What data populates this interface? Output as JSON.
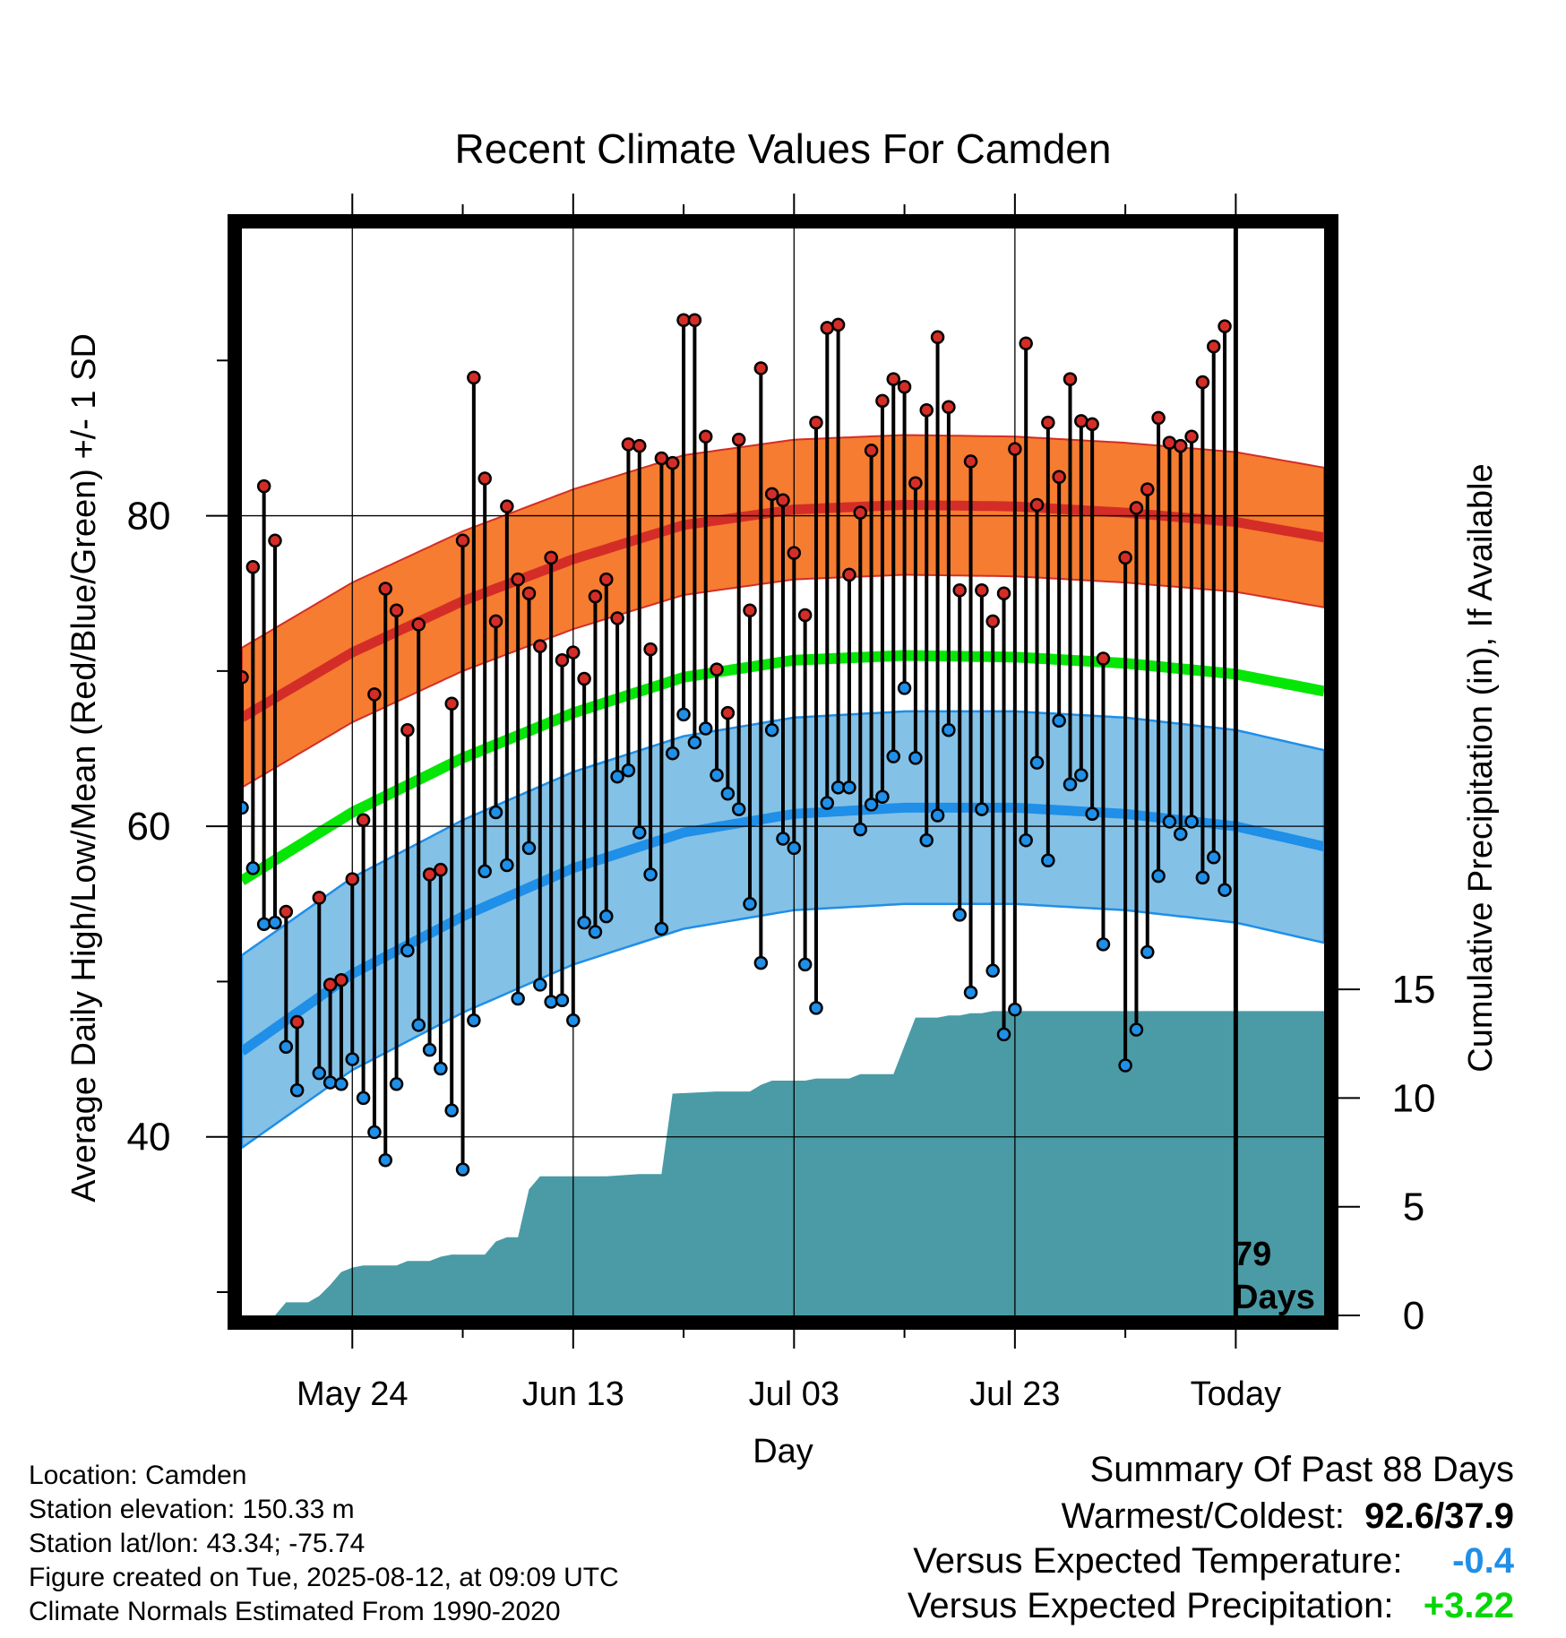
{
  "chart_data": {
    "type": "line",
    "title": "Recent Climate Values For Camden",
    "xlabel": "Day",
    "ylabel": "Average Daily High/Low/Mean (Red/Blue/Green) +/- 1 SD",
    "y2label": "Cumulative Precipitation (in), If Available",
    "xlim": [
      1,
      99
    ],
    "ylim": [
      28.5,
      98.5
    ],
    "y2lim": [
      0,
      50
    ],
    "x_tick_labels": [
      {
        "day": 11,
        "label": "May 24"
      },
      {
        "day": 31,
        "label": "Jun 13"
      },
      {
        "day": 51,
        "label": "Jul 03"
      },
      {
        "day": 71,
        "label": "Jul 23"
      },
      {
        "day": 91,
        "label": "Today"
      }
    ],
    "y_tick_labels": [
      40,
      60,
      80
    ],
    "y2_tick_labels": [
      0,
      5,
      10,
      15
    ],
    "today_marker": {
      "day": 91,
      "label_line1": "79",
      "label_line2": "Days"
    },
    "grid": true,
    "normals": {
      "day": [
        1,
        11,
        21,
        31,
        41,
        51,
        61,
        71,
        81,
        91,
        99
      ],
      "high_mean": [
        67,
        71.2,
        74.5,
        77.2,
        79.4,
        80.4,
        80.7,
        80.6,
        80.2,
        79.6,
        78.6
      ],
      "high_sd": 4.5,
      "low_mean": [
        45.5,
        50.5,
        54.2,
        57.3,
        59.6,
        60.8,
        61.2,
        61.2,
        60.8,
        60.0,
        58.7
      ],
      "low_sd": 6.2,
      "avg_mean": [
        56.5,
        60.9,
        64.4,
        67.3,
        69.6,
        70.7,
        71.0,
        70.9,
        70.5,
        69.8,
        68.7
      ],
      "colors": {
        "high": "#d42d27",
        "high_band": "#f57c30",
        "low": "#1f8fe8",
        "low_band": "#84c1e6",
        "avg": "#06e606"
      }
    },
    "daily_observations": [
      {
        "day": 1,
        "high": 69.6,
        "low": 61.2
      },
      {
        "day": 2,
        "high": 76.7,
        "low": 57.3
      },
      {
        "day": 3,
        "high": 81.9,
        "low": 53.7
      },
      {
        "day": 4,
        "high": 78.4,
        "low": 53.8
      },
      {
        "day": 5,
        "high": 54.5,
        "low": 45.8
      },
      {
        "day": 6,
        "high": 47.4,
        "low": 43.0
      },
      {
        "day": 8,
        "high": 55.4,
        "low": 44.1
      },
      {
        "day": 9,
        "high": 49.8,
        "low": 43.5
      },
      {
        "day": 10,
        "high": 50.1,
        "low": 43.4
      },
      {
        "day": 11,
        "high": 56.6,
        "low": 45.0
      },
      {
        "day": 12,
        "high": 60.4,
        "low": 42.5
      },
      {
        "day": 13,
        "high": 68.5,
        "low": 40.3
      },
      {
        "day": 14,
        "high": 75.3,
        "low": 38.5
      },
      {
        "day": 15,
        "high": 73.9,
        "low": 43.4
      },
      {
        "day": 16,
        "high": 66.2,
        "low": 52.0
      },
      {
        "day": 17,
        "high": 73.0,
        "low": 47.2
      },
      {
        "day": 18,
        "high": 56.9,
        "low": 45.6
      },
      {
        "day": 19,
        "high": 57.2,
        "low": 44.4
      },
      {
        "day": 20,
        "high": 67.9,
        "low": 41.7
      },
      {
        "day": 21,
        "high": 78.4,
        "low": 37.9
      },
      {
        "day": 22,
        "high": 88.9,
        "low": 47.5
      },
      {
        "day": 23,
        "high": 82.4,
        "low": 57.1
      },
      {
        "day": 24,
        "high": 73.2,
        "low": 60.9
      },
      {
        "day": 25,
        "high": 80.6,
        "low": 57.5
      },
      {
        "day": 26,
        "high": 75.9,
        "low": 48.9
      },
      {
        "day": 27,
        "high": 75.0,
        "low": 58.6
      },
      {
        "day": 28,
        "high": 71.6,
        "low": 49.8
      },
      {
        "day": 29,
        "high": 77.3,
        "low": 48.7
      },
      {
        "day": 30,
        "high": 70.7,
        "low": 48.8
      },
      {
        "day": 31,
        "high": 71.2,
        "low": 47.5
      },
      {
        "day": 32,
        "high": 69.5,
        "low": 53.8
      },
      {
        "day": 33,
        "high": 74.8,
        "low": 53.2
      },
      {
        "day": 34,
        "high": 75.9,
        "low": 54.2
      },
      {
        "day": 35,
        "high": 73.4,
        "low": 63.2
      },
      {
        "day": 36,
        "high": 84.6,
        "low": 63.6
      },
      {
        "day": 37,
        "high": 84.5,
        "low": 59.6
      },
      {
        "day": 38,
        "high": 71.4,
        "low": 56.9
      },
      {
        "day": 39,
        "high": 83.7,
        "low": 53.4
      },
      {
        "day": 40,
        "high": 83.4,
        "low": 64.7
      },
      {
        "day": 41,
        "high": 92.6,
        "low": 67.2
      },
      {
        "day": 42,
        "high": 92.6,
        "low": 65.4
      },
      {
        "day": 43,
        "high": 85.1,
        "low": 66.3
      },
      {
        "day": 44,
        "high": 70.1,
        "low": 63.3
      },
      {
        "day": 45,
        "high": 67.3,
        "low": 62.1
      },
      {
        "day": 46,
        "high": 84.9,
        "low": 61.1
      },
      {
        "day": 47,
        "high": 73.9,
        "low": 55.0
      },
      {
        "day": 48,
        "high": 89.5,
        "low": 51.2
      },
      {
        "day": 49,
        "high": 81.4,
        "low": 66.2
      },
      {
        "day": 50,
        "high": 81.0,
        "low": 59.2
      },
      {
        "day": 51,
        "high": 77.6,
        "low": 58.6
      },
      {
        "day": 52,
        "high": 73.6,
        "low": 51.1
      },
      {
        "day": 53,
        "high": 86.0,
        "low": 48.3
      },
      {
        "day": 54,
        "high": 92.1,
        "low": 61.5
      },
      {
        "day": 55,
        "high": 92.3,
        "low": 62.5
      },
      {
        "day": 56,
        "high": 76.2,
        "low": 62.5
      },
      {
        "day": 57,
        "high": 80.2,
        "low": 59.8
      },
      {
        "day": 58,
        "high": 84.2,
        "low": 61.4
      },
      {
        "day": 59,
        "high": 87.4,
        "low": 61.9
      },
      {
        "day": 60,
        "high": 88.8,
        "low": 64.5
      },
      {
        "day": 61,
        "high": 88.3,
        "low": 68.9
      },
      {
        "day": 62,
        "high": 82.1,
        "low": 64.4
      },
      {
        "day": 63,
        "high": 86.8,
        "low": 59.1
      },
      {
        "day": 64,
        "high": 91.5,
        "low": 60.7
      },
      {
        "day": 65,
        "high": 87.0,
        "low": 66.2
      },
      {
        "day": 66,
        "high": 75.2,
        "low": 54.3
      },
      {
        "day": 67,
        "high": 83.5,
        "low": 49.3
      },
      {
        "day": 68,
        "high": 75.2,
        "low": 61.1
      },
      {
        "day": 69,
        "high": 73.2,
        "low": 50.7
      },
      {
        "day": 70,
        "high": 75.0,
        "low": 46.6
      },
      {
        "day": 71,
        "high": 84.3,
        "low": 48.2
      },
      {
        "day": 72,
        "high": 91.1,
        "low": 59.1
      },
      {
        "day": 73,
        "high": 80.7,
        "low": 64.1
      },
      {
        "day": 74,
        "high": 86.0,
        "low": 57.8
      },
      {
        "day": 75,
        "high": 82.5,
        "low": 66.8
      },
      {
        "day": 76,
        "high": 88.8,
        "low": 62.7
      },
      {
        "day": 77,
        "high": 86.1,
        "low": 63.3
      },
      {
        "day": 78,
        "high": 85.9,
        "low": 60.8
      },
      {
        "day": 79,
        "high": 70.8,
        "low": 52.4
      },
      {
        "day": 81,
        "high": 77.3,
        "low": 44.6
      },
      {
        "day": 82,
        "high": 80.5,
        "low": 46.9
      },
      {
        "day": 83,
        "high": 81.7,
        "low": 51.9
      },
      {
        "day": 84,
        "high": 86.3,
        "low": 56.8
      },
      {
        "day": 85,
        "high": 84.7,
        "low": 60.3
      },
      {
        "day": 86,
        "high": 84.5,
        "low": 59.5
      },
      {
        "day": 87,
        "high": 85.1,
        "low": 60.3
      },
      {
        "day": 88,
        "high": 88.6,
        "low": 56.7
      },
      {
        "day": 89,
        "high": 90.9,
        "low": 58.0
      },
      {
        "day": 90,
        "high": 92.2,
        "low": 55.9
      }
    ],
    "precip_cumulative": {
      "day": [
        1,
        4,
        5,
        7,
        8,
        9,
        10,
        11,
        12,
        14,
        15,
        16,
        18,
        19,
        20,
        22,
        23,
        24,
        25,
        26,
        27,
        28,
        29,
        30,
        34,
        37,
        38,
        39,
        40,
        44,
        45,
        46,
        47,
        48,
        49,
        50,
        51,
        52,
        53,
        56,
        57,
        58,
        59,
        60,
        62,
        63,
        64,
        65,
        66,
        67,
        68,
        69,
        70,
        71,
        75,
        99
      ],
      "value": [
        0,
        0,
        0.6,
        0.6,
        0.9,
        1.4,
        2.0,
        2.2,
        2.3,
        2.3,
        2.3,
        2.5,
        2.5,
        2.7,
        2.8,
        2.8,
        2.8,
        3.4,
        3.6,
        3.6,
        5.8,
        6.4,
        6.4,
        6.4,
        6.4,
        6.5,
        6.5,
        6.5,
        10.2,
        10.3,
        10.3,
        10.3,
        10.3,
        10.6,
        10.8,
        10.8,
        10.8,
        10.8,
        10.9,
        10.9,
        11.1,
        11.1,
        11.1,
        11.1,
        13.7,
        13.7,
        13.7,
        13.8,
        13.8,
        13.9,
        13.9,
        14.0,
        14.0,
        14.0,
        14.0,
        14.0
      ],
      "color": "#4a9ba5"
    }
  },
  "info": {
    "location": "Location: Camden",
    "elevation": "Station elevation: 150.33 m",
    "latlon": "Station lat/lon: 43.34; -75.74",
    "created": "Figure created on Tue, 2025-08-12, at 09:09 UTC",
    "normals_period": "Climate Normals Estimated From 1990-2020"
  },
  "summary": {
    "title": "Summary Of Past 88 Days",
    "warm_cold_label": "Warmest/Coldest:",
    "warm_cold_value": "92.6/37.9",
    "temp_label": "Versus Expected Temperature:",
    "temp_value": "-0.4",
    "temp_color": "#1f8fe8",
    "precip_label": "Versus Expected Precipitation:",
    "precip_value": "+3.22",
    "precip_color": "#06d606"
  }
}
